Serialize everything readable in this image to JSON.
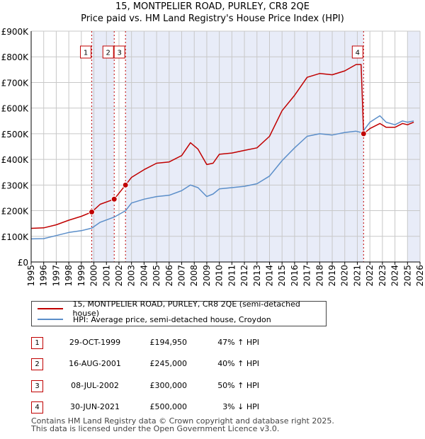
{
  "title_line1": "15, MONTPELIER ROAD, PURLEY, CR8 2QE",
  "title_line2": "Price paid vs. HM Land Registry's House Price Index (HPI)",
  "legend": {
    "property": "15, MONTPELIER ROAD, PURLEY, CR8 2QE (semi-detached house)",
    "hpi": "HPI: Average price, semi-detached house, Croydon"
  },
  "colors": {
    "property": "#c00000",
    "hpi": "#5b8ec9",
    "shade": "#e8ecf8",
    "grid": "#c8c8c8"
  },
  "transactions": [
    {
      "num": "1",
      "date": "29-OCT-1999",
      "price": "£194,950",
      "hpi": "47% ↑ HPI"
    },
    {
      "num": "2",
      "date": "16-AUG-2001",
      "price": "£245,000",
      "hpi": "40% ↑ HPI"
    },
    {
      "num": "3",
      "date": "08-JUL-2002",
      "price": "£300,000",
      "hpi": "50% ↑ HPI"
    },
    {
      "num": "4",
      "date": "30-JUN-2021",
      "price": "£500,000",
      "hpi": "3% ↓ HPI"
    }
  ],
  "footer": {
    "line1": "Contains HM Land Registry data © Crown copyright and database right 2025.",
    "line2": "This data is licensed under the Open Government Licence v3.0."
  },
  "chart_data": {
    "type": "line",
    "title": "15, MONTPELIER ROAD, PURLEY, CR8 2QE",
    "subtitle": "Price paid vs. HM Land Registry's House Price Index (HPI)",
    "xlabel": "",
    "ylabel": "",
    "xlim": [
      1995,
      2026
    ],
    "ylim": [
      0,
      900000
    ],
    "ytick_values": [
      0,
      100000,
      200000,
      300000,
      400000,
      500000,
      600000,
      700000,
      800000,
      900000
    ],
    "ytick_labels": [
      "£0",
      "£100K",
      "£200K",
      "£300K",
      "£400K",
      "£500K",
      "£600K",
      "£700K",
      "£800K",
      "£900K"
    ],
    "xtick_labels": [
      "1995",
      "1996",
      "1997",
      "1998",
      "1999",
      "2000",
      "2001",
      "2002",
      "2003",
      "2004",
      "2005",
      "2006",
      "2007",
      "2008",
      "2009",
      "2010",
      "2011",
      "2012",
      "2013",
      "2014",
      "2015",
      "2016",
      "2017",
      "2018",
      "2019",
      "2020",
      "2021",
      "2022",
      "2023",
      "2024",
      "2025",
      "2026"
    ],
    "grid": true,
    "shaded_ranges": [
      [
        1999.83,
        2001.62
      ],
      [
        2002.52,
        2021.5
      ],
      [
        2025.0,
        2026.0
      ]
    ],
    "series": [
      {
        "name": "15, MONTPELIER ROAD, PURLEY, CR8 2QE (semi-detached house)",
        "x": [
          1995,
          1996,
          1997,
          1998,
          1999,
          1999.83,
          2000.5,
          2001.62,
          2002.52,
          2003,
          2004,
          2005,
          2006,
          2007,
          2007.7,
          2008.3,
          2009,
          2009.5,
          2010,
          2011,
          2012,
          2013,
          2014,
          2015,
          2016,
          2017,
          2018,
          2019,
          2020,
          2020.9,
          2021.3,
          2021.5,
          2022,
          2022.8,
          2023.3,
          2024,
          2024.6,
          2025,
          2025.5
        ],
        "values": [
          131000,
          133000,
          145000,
          163000,
          178000,
          194950,
          225000,
          245000,
          300000,
          330000,
          360000,
          385000,
          390000,
          415000,
          465000,
          440000,
          380000,
          385000,
          420000,
          425000,
          435000,
          445000,
          490000,
          590000,
          650000,
          720000,
          735000,
          730000,
          745000,
          770000,
          770000,
          500000,
          520000,
          540000,
          525000,
          525000,
          540000,
          535000,
          545000
        ]
      },
      {
        "name": "HPI: Average price, semi-detached house, Croydon",
        "x": [
          1995,
          1996,
          1997,
          1998,
          1999,
          1999.83,
          2000.5,
          2001.62,
          2002.52,
          2003,
          2004,
          2005,
          2006,
          2007,
          2007.7,
          2008.3,
          2009,
          2009.5,
          2010,
          2011,
          2012,
          2013,
          2014,
          2015,
          2016,
          2017,
          2018,
          2019,
          2020,
          2020.9,
          2021.3,
          2021.5,
          2022,
          2022.8,
          2023.3,
          2024,
          2024.6,
          2025,
          2025.5
        ],
        "values": [
          90000,
          91000,
          103000,
          115000,
          122000,
          132000,
          155000,
          175000,
          200000,
          230000,
          245000,
          255000,
          260000,
          278000,
          300000,
          290000,
          255000,
          265000,
          285000,
          290000,
          295000,
          305000,
          335000,
          395000,
          445000,
          490000,
          500000,
          495000,
          505000,
          510000,
          505000,
          512000,
          545000,
          570000,
          545000,
          535000,
          550000,
          545000,
          550000
        ]
      }
    ],
    "annotations": [
      {
        "label": "1",
        "x": 1999.83,
        "y": 194950
      },
      {
        "label": "2",
        "x": 2001.62,
        "y": 245000
      },
      {
        "label": "3",
        "x": 2002.52,
        "y": 300000
      },
      {
        "label": "4",
        "x": 2021.5,
        "y": 500000
      }
    ]
  }
}
